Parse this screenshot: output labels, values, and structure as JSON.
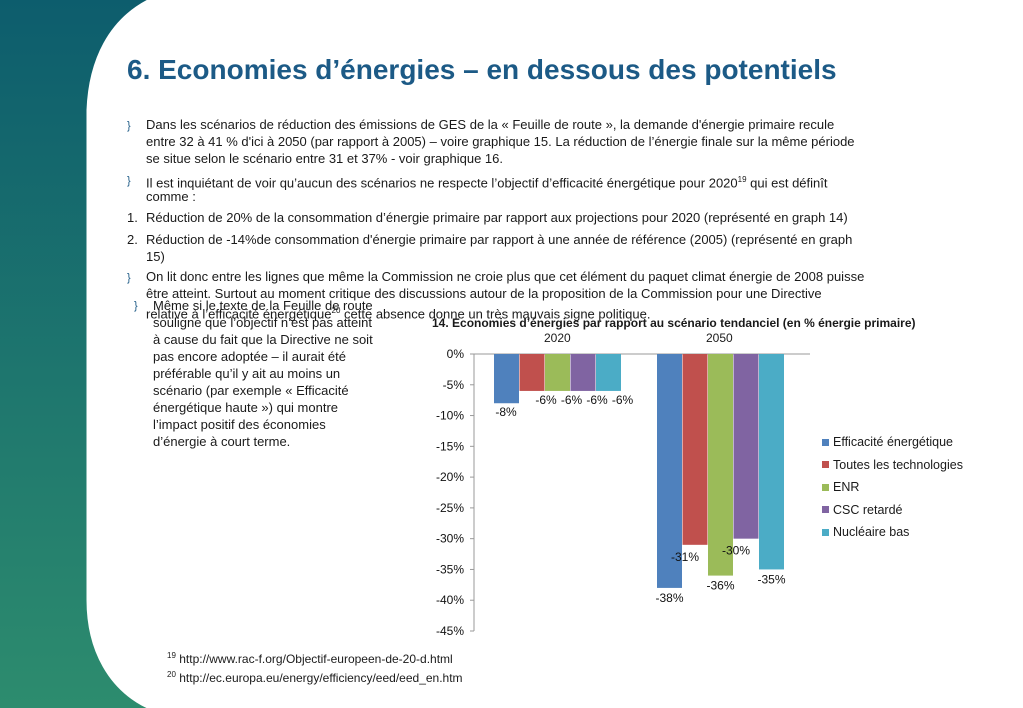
{
  "slide": {
    "title": "6. Economies d’énergies – en dessous des potentiels",
    "bullet_glyph": "}",
    "paragraphs": {
      "p1_l1": "Dans les scénarios de réduction des émissions de GES de la  « Feuille de route », la demande d'énergie primaire recule",
      "p1_l2": "entre 32 à 41 % d'ici à 2050 (par rapport à 2005) – voire graphique 15. La réduction de l’énergie finale sur la même période",
      "p1_l3": "se situe selon le scénario entre 31 et 37% - voir graphique 16.",
      "p2_l1": "Il est inquiétant de voir qu’aucun des scénarios ne respecte l’objectif d’efficacité énergétique pour 2020",
      "p2_sup": "19",
      "p2_l1b": "  qui est définît",
      "p2_l2": "comme :",
      "n1_num": "1.",
      "n1": " Réduction de 20% de la consommation d’énergie primaire par rapport aux projections pour 2020 (représenté en graph 14)",
      "n2_num": "2.",
      "n2_l1": " Réduction de -14%de consommation d'énergie primaire par rapport à une année de référence (2005) (représenté en graph",
      "n2_l2": "15)",
      "p3_l1": "On lit donc entre les lignes que même la Commission ne croie plus que cet élément du paquet climat énergie de 2008 puisse",
      "p3_l2": "être atteint. Surtout au moment critique des discussions autour de la proposition de la Commission pour une Directive",
      "p3_l3": "relative à l’efficacité énergétique",
      "p3_sup": "20",
      "p3_l3b": " cette absence donne un très mauvais signe politique.",
      "side": [
        "Même si le texte de la Feuille de route",
        "souligne que l’objectif n’est pas atteint",
        "à cause du fait que la Directive ne soit",
        "pas encore adoptée – il aurait été",
        "préférable qu’il y ait au moins un",
        "scénario (par exemple « Efficacité",
        "énergétique haute ») qui montre",
        "l’impact positif des économies",
        "d’énergie à court terme."
      ]
    },
    "footnotes": [
      {
        "num": "19",
        "text": " http://www.rac-f.org/Objectif-europeen-de-20-d.html"
      },
      {
        "num": "20",
        "text": "  http://ec.europa.eu/energy/efficiency/eed/eed_en.htm"
      }
    ]
  },
  "chart_data": {
    "type": "bar",
    "title": "14. Economies d’énergies par rapport au scénario tendanciel (en % énergie primaire)",
    "categories": [
      "2020",
      "2050"
    ],
    "series": [
      {
        "name": "Efficacité énergétique",
        "values": [
          -8,
          -38
        ],
        "labels": [
          "-8%",
          "-38%"
        ],
        "color": "#4f81bd"
      },
      {
        "name": "Toutes les technologies",
        "values": [
          -6,
          -31
        ],
        "labels": [
          "-6%",
          "-31%"
        ],
        "color": "#c0504d"
      },
      {
        "name": "ENR",
        "values": [
          -6,
          -36
        ],
        "labels": [
          "-6%",
          "-36%"
        ],
        "color": "#9bbb59"
      },
      {
        "name": "CSC retardé",
        "values": [
          -6,
          -30
        ],
        "labels": [
          "-6%",
          "-30%"
        ],
        "color": "#8064a2"
      },
      {
        "name": "Nucléaire bas",
        "values": [
          -6,
          -35
        ],
        "labels": [
          "-6%",
          "-35%"
        ],
        "color": "#4bacc6"
      }
    ],
    "ylim": [
      -45,
      0
    ],
    "yticks": [
      "0%",
      "-5%",
      "-10%",
      "-15%",
      "-20%",
      "-25%",
      "-30%",
      "-35%",
      "-40%",
      "-45%"
    ],
    "ytick_values": [
      0,
      -5,
      -10,
      -15,
      -20,
      -25,
      -30,
      -35,
      -40,
      -45
    ],
    "grid": false,
    "legend_position": "right",
    "xlabel": "",
    "ylabel": ""
  }
}
